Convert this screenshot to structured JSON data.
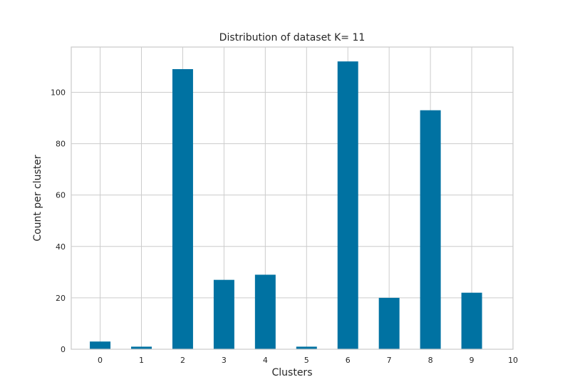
{
  "chart_data": {
    "type": "bar",
    "title": "Distribution of dataset K= 11",
    "xlabel": "Clusters",
    "ylabel": "Count per cluster",
    "categories": [
      "0",
      "1",
      "2",
      "3",
      "4",
      "5",
      "6",
      "7",
      "8",
      "9"
    ],
    "values": [
      3,
      1,
      109,
      27,
      29,
      1,
      112,
      20,
      93,
      22
    ],
    "x_ticks": [
      "0",
      "1",
      "2",
      "3",
      "4",
      "5",
      "6",
      "7",
      "8",
      "9",
      "10"
    ],
    "y_ticks": [
      "0",
      "20",
      "40",
      "60",
      "80",
      "100"
    ],
    "ylim": [
      0,
      117.6
    ],
    "xlim": [
      -0.7,
      10.0
    ],
    "grid": true,
    "legend": false,
    "bar_color": "#0072a2"
  }
}
